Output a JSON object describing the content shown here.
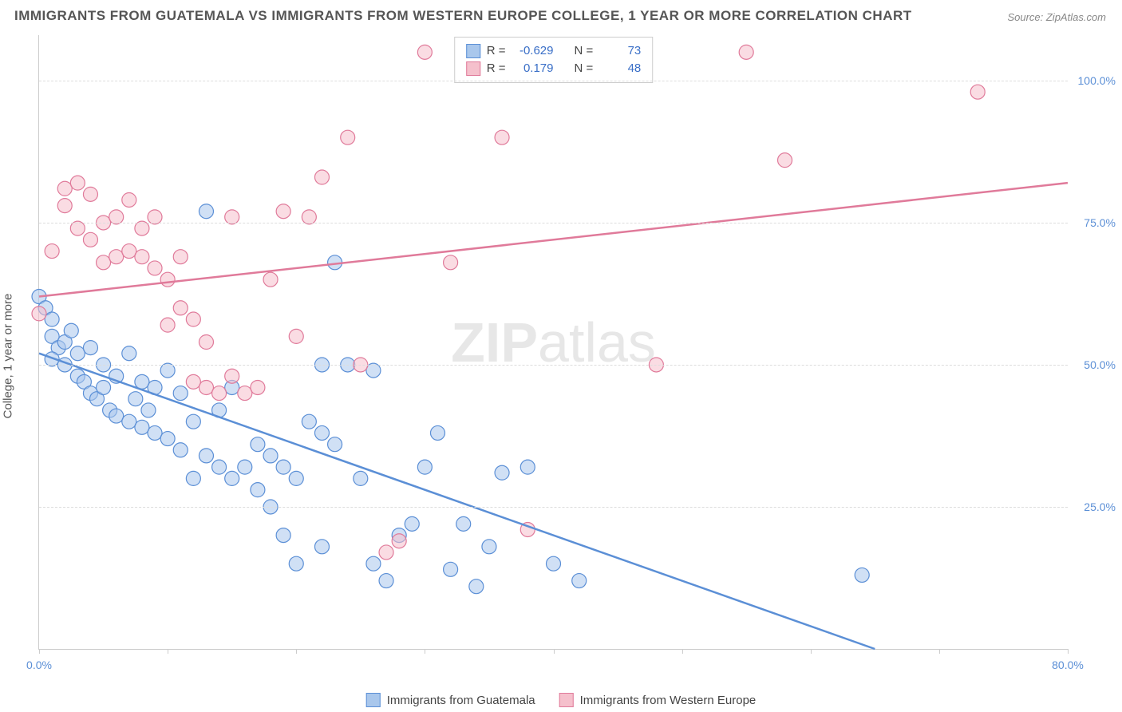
{
  "title": "IMMIGRANTS FROM GUATEMALA VS IMMIGRANTS FROM WESTERN EUROPE COLLEGE, 1 YEAR OR MORE CORRELATION CHART",
  "source": "Source: ZipAtlas.com",
  "y_axis_label": "College, 1 year or more",
  "watermark_zip": "ZIP",
  "watermark_atlas": "atlas",
  "chart": {
    "type": "scatter",
    "x_range": [
      0,
      80
    ],
    "y_range": [
      0,
      108
    ],
    "x_ticks": [
      0,
      10,
      20,
      30,
      40,
      50,
      60,
      70,
      80
    ],
    "x_tick_labels": {
      "0": "0.0%",
      "80": "80.0%"
    },
    "y_gridlines": [
      25,
      50,
      75,
      100
    ],
    "y_tick_labels": {
      "25": "25.0%",
      "50": "50.0%",
      "75": "75.0%",
      "100": "100.0%"
    },
    "background_color": "#ffffff",
    "grid_color": "#dddddd",
    "marker_radius": 9,
    "marker_stroke_width": 1.2,
    "trend_line_width": 2.5,
    "series": [
      {
        "name": "Immigrants from Guatemala",
        "fill_color": "#a9c7ec",
        "stroke_color": "#5b8fd6",
        "fill_opacity": 0.55,
        "R": "-0.629",
        "N": "73",
        "trend": {
          "x1": 0,
          "y1": 52,
          "x2": 65,
          "y2": 0
        },
        "points": [
          [
            0,
            62
          ],
          [
            0.5,
            60
          ],
          [
            1,
            55
          ],
          [
            1,
            58
          ],
          [
            1.5,
            53
          ],
          [
            1,
            51
          ],
          [
            2,
            50
          ],
          [
            2,
            54
          ],
          [
            2.5,
            56
          ],
          [
            3,
            48
          ],
          [
            3,
            52
          ],
          [
            3.5,
            47
          ],
          [
            4,
            45
          ],
          [
            4,
            53
          ],
          [
            4.5,
            44
          ],
          [
            5,
            50
          ],
          [
            5,
            46
          ],
          [
            5.5,
            42
          ],
          [
            6,
            41
          ],
          [
            6,
            48
          ],
          [
            7,
            40
          ],
          [
            7,
            52
          ],
          [
            7.5,
            44
          ],
          [
            8,
            39
          ],
          [
            8,
            47
          ],
          [
            8.5,
            42
          ],
          [
            9,
            38
          ],
          [
            9,
            46
          ],
          [
            10,
            37
          ],
          [
            10,
            49
          ],
          [
            11,
            35
          ],
          [
            11,
            45
          ],
          [
            12,
            30
          ],
          [
            12,
            40
          ],
          [
            13,
            34
          ],
          [
            13,
            77
          ],
          [
            14,
            32
          ],
          [
            14,
            42
          ],
          [
            15,
            30
          ],
          [
            15,
            46
          ],
          [
            16,
            32
          ],
          [
            17,
            28
          ],
          [
            17,
            36
          ],
          [
            18,
            34
          ],
          [
            18,
            25
          ],
          [
            19,
            20
          ],
          [
            19,
            32
          ],
          [
            20,
            15
          ],
          [
            20,
            30
          ],
          [
            21,
            40
          ],
          [
            22,
            18
          ],
          [
            22,
            38
          ],
          [
            23,
            36
          ],
          [
            24,
            50
          ],
          [
            25,
            30
          ],
          [
            26,
            15
          ],
          [
            26,
            49
          ],
          [
            27,
            12
          ],
          [
            28,
            20
          ],
          [
            29,
            22
          ],
          [
            30,
            32
          ],
          [
            31,
            38
          ],
          [
            32,
            14
          ],
          [
            33,
            22
          ],
          [
            34,
            11
          ],
          [
            35,
            18
          ],
          [
            36,
            31
          ],
          [
            38,
            32
          ],
          [
            40,
            15
          ],
          [
            42,
            12
          ],
          [
            23,
            68
          ],
          [
            22,
            50
          ],
          [
            64,
            13
          ]
        ]
      },
      {
        "name": "Immigrants from Western Europe",
        "fill_color": "#f5c0cc",
        "stroke_color": "#e07a9a",
        "fill_opacity": 0.55,
        "R": "0.179",
        "N": "48",
        "trend": {
          "x1": 0,
          "y1": 62,
          "x2": 80,
          "y2": 82
        },
        "points": [
          [
            0,
            59
          ],
          [
            1,
            70
          ],
          [
            2,
            81
          ],
          [
            2,
            78
          ],
          [
            3,
            82
          ],
          [
            3,
            74
          ],
          [
            4,
            72
          ],
          [
            4,
            80
          ],
          [
            5,
            68
          ],
          [
            5,
            75
          ],
          [
            6,
            76
          ],
          [
            6,
            69
          ],
          [
            7,
            79
          ],
          [
            7,
            70
          ],
          [
            8,
            69
          ],
          [
            8,
            74
          ],
          [
            9,
            67
          ],
          [
            9,
            76
          ],
          [
            10,
            57
          ],
          [
            10,
            65
          ],
          [
            11,
            60
          ],
          [
            11,
            69
          ],
          [
            12,
            47
          ],
          [
            12,
            58
          ],
          [
            13,
            54
          ],
          [
            13,
            46
          ],
          [
            14,
            45
          ],
          [
            15,
            48
          ],
          [
            15,
            76
          ],
          [
            16,
            45
          ],
          [
            17,
            46
          ],
          [
            18,
            65
          ],
          [
            19,
            77
          ],
          [
            20,
            55
          ],
          [
            21,
            76
          ],
          [
            22,
            83
          ],
          [
            24,
            90
          ],
          [
            25,
            50
          ],
          [
            27,
            17
          ],
          [
            28,
            19
          ],
          [
            30,
            105
          ],
          [
            32,
            68
          ],
          [
            36,
            90
          ],
          [
            38,
            21
          ],
          [
            48,
            50
          ],
          [
            55,
            105
          ],
          [
            58,
            86
          ],
          [
            73,
            98
          ]
        ]
      }
    ]
  },
  "stats_labels": {
    "R": "R =",
    "N": "N ="
  },
  "legend_bottom": [
    {
      "swatch_fill": "#a9c7ec",
      "swatch_stroke": "#5b8fd6",
      "label": "Immigrants from Guatemala"
    },
    {
      "swatch_fill": "#f5c0cc",
      "swatch_stroke": "#e07a9a",
      "label": "Immigrants from Western Europe"
    }
  ]
}
